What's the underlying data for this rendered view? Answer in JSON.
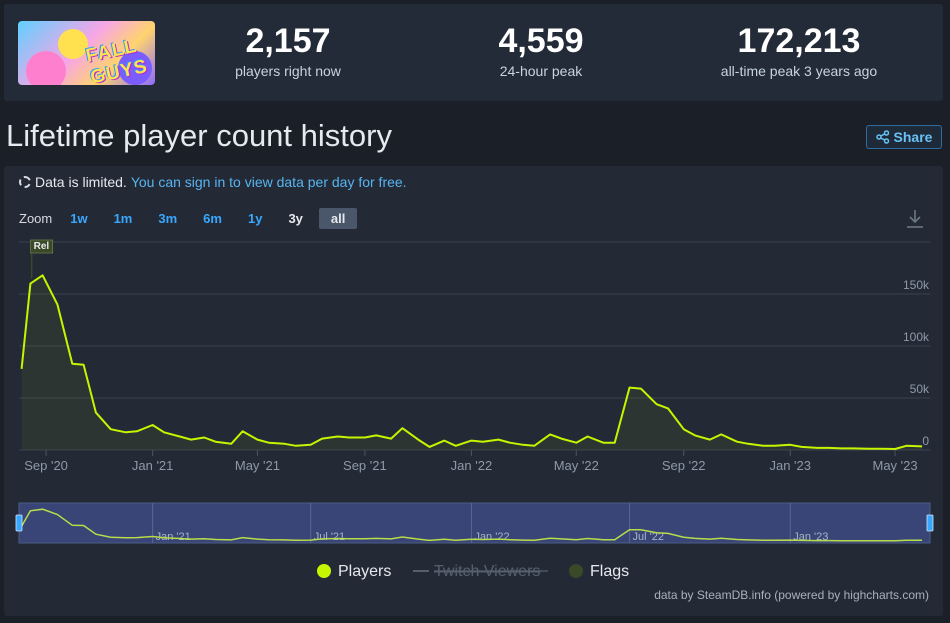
{
  "stats": [
    {
      "value": "2,157",
      "label": "players right now"
    },
    {
      "value": "4,559",
      "label": "24-hour peak"
    },
    {
      "value": "172,213",
      "label": "all-time peak 3 years ago"
    }
  ],
  "game_art": {
    "logo_text": "FALL GUYS"
  },
  "page_title": "Lifetime player count history",
  "share_label": "Share",
  "notice": {
    "text": "Data is limited.",
    "link": "You can sign in to view data per day for free."
  },
  "zoom": {
    "label": "Zoom",
    "options": [
      "1w",
      "1m",
      "3m",
      "6m",
      "1y",
      "3y",
      "all"
    ],
    "active": "all"
  },
  "icons": {
    "share": "share-icon",
    "download": "download-icon",
    "notice": "dashed-circle-icon"
  },
  "colors": {
    "players": "#c6f500",
    "flags": "#3a4a29",
    "accent": "#3aa7ff",
    "twitch": "#56606c"
  },
  "chart_data": {
    "type": "line",
    "xlabel": "",
    "ylabel": "",
    "x_ticks": [
      "Sep '20",
      "Jan '21",
      "May '21",
      "Sep '21",
      "Jan '22",
      "May '22",
      "Sep '22",
      "Jan '23",
      "May '23"
    ],
    "y_ticks": [
      "0",
      "50k",
      "100k",
      "150k"
    ],
    "ylim": [
      0,
      200000
    ],
    "xlim": [
      "2020-08-01",
      "2023-06-10"
    ],
    "grid": true,
    "legend_position": "bottom",
    "series": [
      {
        "name": "Players",
        "x": [
          "2020-08-04",
          "2020-08-14",
          "2020-08-28",
          "2020-09-14",
          "2020-10-01",
          "2020-10-14",
          "2020-10-28",
          "2020-11-14",
          "2020-12-01",
          "2020-12-14",
          "2021-01-01",
          "2021-01-14",
          "2021-02-01",
          "2021-02-14",
          "2021-03-01",
          "2021-03-14",
          "2021-04-01",
          "2021-04-14",
          "2021-05-01",
          "2021-05-14",
          "2021-06-01",
          "2021-06-14",
          "2021-07-01",
          "2021-07-14",
          "2021-08-01",
          "2021-08-14",
          "2021-09-01",
          "2021-09-14",
          "2021-10-01",
          "2021-10-14",
          "2021-11-01",
          "2021-11-14",
          "2021-12-01",
          "2021-12-14",
          "2022-01-01",
          "2022-01-14",
          "2022-02-01",
          "2022-02-14",
          "2022-03-01",
          "2022-03-14",
          "2022-04-01",
          "2022-04-14",
          "2022-05-01",
          "2022-05-14",
          "2022-06-01",
          "2022-06-14",
          "2022-07-01",
          "2022-07-14",
          "2022-08-01",
          "2022-08-14",
          "2022-09-01",
          "2022-09-14",
          "2022-10-01",
          "2022-10-14",
          "2022-11-01",
          "2022-11-14",
          "2022-12-01",
          "2022-12-14",
          "2023-01-01",
          "2023-01-14",
          "2023-02-01",
          "2023-02-14",
          "2023-03-01",
          "2023-03-14",
          "2023-04-01",
          "2023-04-14",
          "2023-05-01",
          "2023-05-14",
          "2023-06-01"
        ],
        "values": [
          78000,
          160000,
          168000,
          140000,
          83000,
          82000,
          36000,
          20000,
          17000,
          18000,
          24000,
          17000,
          13000,
          10000,
          12000,
          8000,
          6000,
          18000,
          10000,
          7000,
          6000,
          4000,
          5000,
          11000,
          13000,
          12000,
          12000,
          14000,
          11000,
          21000,
          10000,
          3000,
          9000,
          4000,
          9000,
          8000,
          10000,
          7000,
          5000,
          4000,
          15000,
          11000,
          7000,
          13000,
          7000,
          7000,
          60000,
          59000,
          44000,
          40000,
          20000,
          14000,
          10000,
          15000,
          8000,
          6000,
          4000,
          4000,
          5000,
          3000,
          2000,
          2000,
          1500,
          1500,
          1200,
          1200,
          1000,
          4000,
          3500
        ]
      },
      {
        "name": "Twitch Viewers",
        "hidden": true,
        "values": []
      },
      {
        "name": "Flags",
        "x": [
          "2020-08-04"
        ],
        "labels": [
          "Rel"
        ]
      }
    ],
    "navigator": {
      "x_ticks": [
        "Jan '21",
        "Jul '21",
        "Jan '22",
        "Jul '22",
        "Jan '23"
      ]
    }
  },
  "credit": "data by SteamDB.info (powered by highcharts.com)"
}
